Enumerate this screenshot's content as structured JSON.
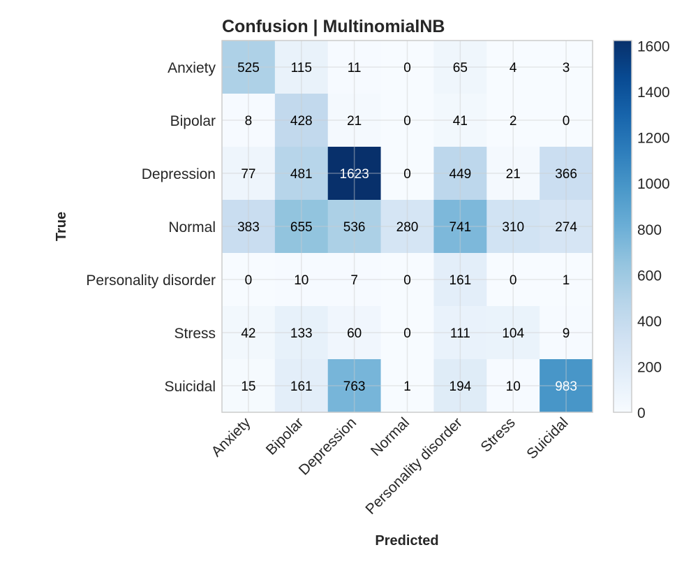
{
  "chart_data": {
    "type": "heatmap",
    "title": "Confusion | MultinomialNB",
    "xlabel": "Predicted",
    "ylabel": "True",
    "x_categories": [
      "Anxiety",
      "Bipolar",
      "Depression",
      "Normal",
      "Personality disorder",
      "Stress",
      "Suicidal"
    ],
    "y_categories": [
      "Anxiety",
      "Bipolar",
      "Depression",
      "Normal",
      "Personality disorder",
      "Stress",
      "Suicidal"
    ],
    "values": [
      [
        525,
        115,
        11,
        0,
        65,
        4,
        3
      ],
      [
        8,
        428,
        21,
        0,
        41,
        2,
        0
      ],
      [
        77,
        481,
        1623,
        0,
        449,
        21,
        366
      ],
      [
        383,
        655,
        536,
        280,
        741,
        310,
        274
      ],
      [
        0,
        10,
        7,
        0,
        161,
        0,
        1
      ],
      [
        42,
        133,
        60,
        0,
        111,
        104,
        9
      ],
      [
        15,
        161,
        763,
        1,
        194,
        10,
        983
      ]
    ],
    "colorbar": {
      "min": 0,
      "max": 1623,
      "ticks": [
        0,
        200,
        400,
        600,
        800,
        1000,
        1200,
        1400,
        1600
      ]
    },
    "colormap": "Blues",
    "grid": true
  }
}
